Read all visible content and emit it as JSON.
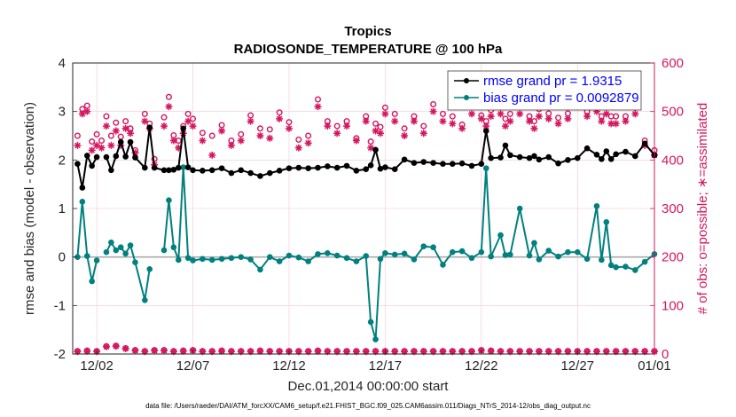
{
  "chart_data": {
    "type": "line",
    "title": "Tropics",
    "subtitle": "RADIOSONDE_TEMPERATURE @ 100 hPa",
    "xlabel": "Dec.01,2014 00:00:00 start",
    "ylabel": "rmse and bias (model - observation)",
    "y2label": "# of obs: o=possible; ∗=assimilated",
    "footnote": "data file: /Users/raeder/DAI/ATM_forcXX/CAM6_setup/f.e21.FHIST_BGC.f09_025.CAM6assim.011/Diags_NTrS_2014-12/obs_diag_output.nc",
    "xlim": [
      0.75,
      31.0
    ],
    "ylim": [
      -2,
      4
    ],
    "y2lim": [
      0,
      600
    ],
    "xticks": [
      2,
      7,
      12,
      17,
      22,
      27,
      32
    ],
    "xtick_labels": [
      "12/02",
      "12/07",
      "12/12",
      "12/17",
      "12/22",
      "12/27",
      "01/01"
    ],
    "yticks": [
      -2,
      -1,
      0,
      1,
      2,
      3,
      4
    ],
    "ytick_labels": [
      "-2",
      "-1",
      "0",
      "1",
      "2",
      "3",
      "4"
    ],
    "y2ticks": [
      0,
      100,
      200,
      300,
      400,
      500,
      600
    ],
    "y2tick_labels": [
      "0",
      "100",
      "200",
      "300",
      "400",
      "500",
      "600"
    ],
    "colors": {
      "rmse": "#000000",
      "bias": "#00807f",
      "counts": "#d6165e",
      "zero_line": "#aaaaaa",
      "grid": "#f2c6d8",
      "legend_text": "#0000ff"
    },
    "legend": [
      {
        "key": "rmse",
        "label": "rmse grand pr = 1.9315"
      },
      {
        "key": "bias",
        "label": "bias grand pr = 0.0092879"
      }
    ],
    "legend_location": "top-right",
    "x": [
      1.0,
      1.25,
      1.5,
      1.75,
      2.0,
      2.25,
      2.5,
      2.75,
      3.0,
      3.25,
      3.5,
      3.75,
      4.0,
      4.5,
      4.75,
      5.0,
      5.5,
      5.75,
      6.0,
      6.25,
      6.5,
      6.75,
      7.0,
      7.5,
      8.0,
      8.5,
      9.0,
      9.5,
      10.0,
      10.5,
      11.0,
      11.5,
      12.0,
      12.5,
      13.0,
      13.5,
      14.0,
      14.5,
      15.0,
      15.5,
      16.0,
      16.25,
      16.5,
      16.75,
      17.0,
      17.5,
      18.0,
      18.5,
      19.0,
      19.5,
      20.0,
      20.5,
      21.0,
      21.5,
      22.0,
      22.25,
      22.5,
      23.0,
      23.25,
      23.5,
      24.0,
      24.5,
      24.75,
      25.0,
      25.5,
      26.0,
      26.5,
      27.0,
      27.5,
      28.0,
      28.25,
      28.5,
      28.75,
      29.0,
      29.5,
      30.0,
      30.5,
      31.0
    ],
    "series": [
      {
        "name": "rmse",
        "values": [
          1.92,
          1.43,
          2.09,
          1.88,
          2.06,
          null,
          2.06,
          1.79,
          2.08,
          2.37,
          2.07,
          2.37,
          2.05,
          1.84,
          2.67,
          1.84,
          1.79,
          1.79,
          1.8,
          1.84,
          2.65,
          1.85,
          1.79,
          1.78,
          1.79,
          1.83,
          1.73,
          1.79,
          1.73,
          1.67,
          1.73,
          1.78,
          1.83,
          1.84,
          1.83,
          1.84,
          1.87,
          1.84,
          1.88,
          1.78,
          1.81,
          1.89,
          2.21,
          1.82,
          1.85,
          1.81,
          2.01,
          1.94,
          1.96,
          1.94,
          1.92,
          1.92,
          1.93,
          1.88,
          1.92,
          2.6,
          2.04,
          2.05,
          2.3,
          2.1,
          2.06,
          2.04,
          2.08,
          2.01,
          2.06,
          1.93,
          2.0,
          2.04,
          2.24,
          2.11,
          2.02,
          2.18,
          2.02,
          2.12,
          2.17,
          2.08,
          2.34,
          2.1
        ]
      },
      {
        "name": "bias",
        "values": [
          0.0,
          1.14,
          0.02,
          -0.5,
          -0.07,
          null,
          0.1,
          0.3,
          0.14,
          0.2,
          0.07,
          0.24,
          -0.11,
          -0.89,
          -0.25,
          null,
          0.14,
          1.17,
          0.2,
          -0.06,
          1.85,
          -0.02,
          -0.07,
          -0.04,
          -0.06,
          -0.04,
          -0.02,
          0.0,
          -0.05,
          -0.26,
          0.0,
          -0.09,
          0.03,
          -0.01,
          -0.09,
          0.06,
          0.08,
          0.03,
          -0.02,
          -0.09,
          0.02,
          -1.34,
          -1.7,
          -0.04,
          0.08,
          0.05,
          0.07,
          -0.05,
          0.22,
          0.2,
          -0.16,
          0.1,
          0.12,
          -0.02,
          0.1,
          1.83,
          0.01,
          0.45,
          0.04,
          0.05,
          1.0,
          0.03,
          0.29,
          -0.05,
          0.13,
          0.01,
          0.1,
          0.1,
          -0.04,
          1.05,
          -0.06,
          0.72,
          -0.17,
          -0.21,
          -0.2,
          -0.27,
          -0.1,
          0.06
        ]
      },
      {
        "name": "possible",
        "axis": "right",
        "values": [
          450,
          505,
          512,
          438,
          453,
          440,
          490,
          450,
          477,
          448,
          480,
          465,
          420,
          495,
          475,
          402,
          488,
          530,
          451,
          440,
          470,
          495,
          485,
          456,
          450,
          472,
          440,
          453,
          492,
          465,
          463,
          498,
          478,
          442,
          450,
          525,
          480,
          470,
          480,
          445,
          490,
          438,
          475,
          468,
          508,
          495,
          465,
          490,
          470,
          515,
          495,
          490,
          473,
          510,
          492,
          480,
          503,
          509,
          485,
          495,
          510,
          490,
          480,
          505,
          496,
          487,
          496,
          525,
          500,
          518,
          490,
          510,
          490,
          490,
          490,
          508,
          440,
          420
        ]
      },
      {
        "name": "assimilated",
        "axis": "right",
        "values": [
          430,
          495,
          500,
          420,
          430,
          425,
          470,
          430,
          460,
          430,
          465,
          455,
          415,
          480,
          465,
          390,
          470,
          510,
          440,
          425,
          455,
          480,
          470,
          440,
          410,
          460,
          430,
          440,
          480,
          450,
          445,
          485,
          465,
          425,
          435,
          510,
          470,
          455,
          470,
          440,
          480,
          425,
          460,
          455,
          495,
          480,
          450,
          480,
          455,
          500,
          480,
          475,
          465,
          495,
          485,
          470,
          490,
          495,
          470,
          480,
          495,
          480,
          465,
          490,
          485,
          475,
          485,
          510,
          490,
          500,
          480,
          495,
          475,
          475,
          480,
          495,
          430,
          410
        ]
      },
      {
        "name": "possible_bottom",
        "axis": "right",
        "x": [
          1.0,
          1.5,
          2.0,
          2.5,
          3.0,
          3.5,
          4.0,
          4.5,
          5.0,
          5.5,
          6.0,
          6.5,
          7.0,
          7.5,
          8.0,
          8.5,
          9.0,
          9.5,
          10.0,
          10.5,
          11.0,
          11.5,
          12.0,
          12.5,
          13.0,
          13.5,
          14.0,
          14.5,
          15.0,
          15.5,
          16.0,
          16.5,
          17.0,
          17.5,
          18.0,
          18.5,
          19.0,
          19.5,
          20.0,
          20.5,
          21.0,
          21.5,
          22.0,
          22.5,
          23.0,
          23.5,
          24.0,
          24.5,
          25.0,
          25.5,
          26.0,
          26.5,
          27.0,
          27.5,
          28.0,
          28.5,
          29.0,
          29.5,
          30.0,
          30.5,
          31.0
        ],
        "values": [
          6,
          7,
          6,
          16,
          17,
          12,
          8,
          6,
          8,
          8,
          6,
          7,
          8,
          6,
          6,
          7,
          6,
          6,
          6,
          7,
          6,
          6,
          6,
          6,
          6,
          7,
          6,
          6,
          6,
          6,
          6,
          6,
          6,
          6,
          6,
          6,
          6,
          6,
          6,
          6,
          6,
          6,
          8,
          7,
          6,
          6,
          6,
          6,
          6,
          6,
          6,
          6,
          6,
          6,
          6,
          6,
          6,
          6,
          6,
          6,
          6
        ]
      },
      {
        "name": "assimilated_bottom",
        "axis": "right",
        "x": [
          1.0,
          1.5,
          2.0,
          2.5,
          3.0,
          3.5,
          4.0,
          4.5,
          5.0,
          5.5,
          6.0,
          6.5,
          7.0,
          7.5,
          8.0,
          8.5,
          9.0,
          9.5,
          10.0,
          10.5,
          11.0,
          11.5,
          12.0,
          12.5,
          13.0,
          13.5,
          14.0,
          14.5,
          15.0,
          15.5,
          16.0,
          16.5,
          17.0,
          17.5,
          18.0,
          18.5,
          19.0,
          19.5,
          20.0,
          20.5,
          21.0,
          21.5,
          22.0,
          22.5,
          23.0,
          23.5,
          24.0,
          24.5,
          25.0,
          25.5,
          26.0,
          26.5,
          27.0,
          27.5,
          28.0,
          28.5,
          29.0,
          29.5,
          30.0,
          30.5,
          31.0
        ],
        "values": [
          5,
          6,
          5,
          15,
          16,
          11,
          7,
          5,
          7,
          7,
          5,
          6,
          7,
          5,
          5,
          6,
          5,
          5,
          5,
          6,
          5,
          5,
          5,
          5,
          5,
          6,
          5,
          5,
          5,
          5,
          5,
          5,
          5,
          5,
          5,
          5,
          5,
          5,
          5,
          5,
          5,
          5,
          7,
          6,
          5,
          5,
          5,
          5,
          5,
          5,
          5,
          5,
          5,
          5,
          5,
          5,
          5,
          5,
          5,
          5,
          5
        ]
      }
    ]
  }
}
